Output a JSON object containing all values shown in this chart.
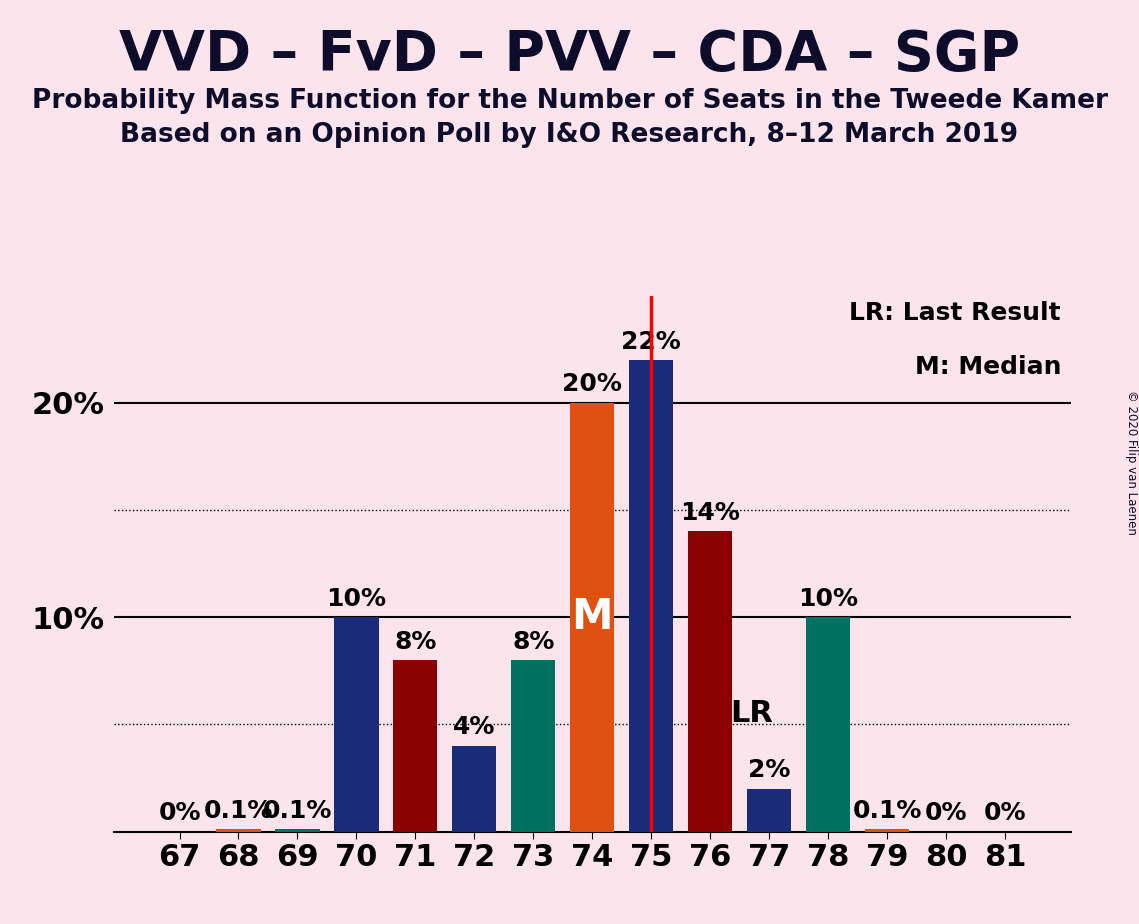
{
  "title": "VVD – FvD – PVV – CDA – SGP",
  "subtitle1": "Probability Mass Function for the Number of Seats in the Tweede Kamer",
  "subtitle2": "Based on an Opinion Poll by I&O Research, 8–12 March 2019",
  "copyright": "© 2020 Filip van Laenen",
  "seats": [
    67,
    68,
    69,
    70,
    71,
    72,
    73,
    74,
    75,
    76,
    77,
    78,
    79,
    80,
    81
  ],
  "probabilities": [
    0.0,
    0.1,
    0.1,
    10.0,
    8.0,
    4.0,
    8.0,
    20.0,
    22.0,
    14.0,
    2.0,
    10.0,
    0.1,
    0.0,
    0.0
  ],
  "bar_colors": [
    "#1a2b7a",
    "#e05010",
    "#007060",
    "#1a2b7a",
    "#8b0000",
    "#1a2b7a",
    "#007060",
    "#e05010",
    "#1a2b7a",
    "#8b0000",
    "#1a2b7a",
    "#007060",
    "#e05010",
    "#1a2b7a",
    "#8b0000"
  ],
  "median_seat": 74,
  "last_result_seat": 75,
  "median_label": "M",
  "lr_label": "LR",
  "legend_lr": "LR: Last Result",
  "legend_m": "M: Median",
  "background_color": "#fce4ec",
  "ylim": [
    0,
    25
  ],
  "major_yticks": [
    10,
    20
  ],
  "dotted_yticks": [
    5,
    15
  ],
  "bar_width": 0.75,
  "title_fontsize": 40,
  "subtitle_fontsize": 19,
  "tick_fontsize": 22,
  "annotation_fontsize": 18
}
